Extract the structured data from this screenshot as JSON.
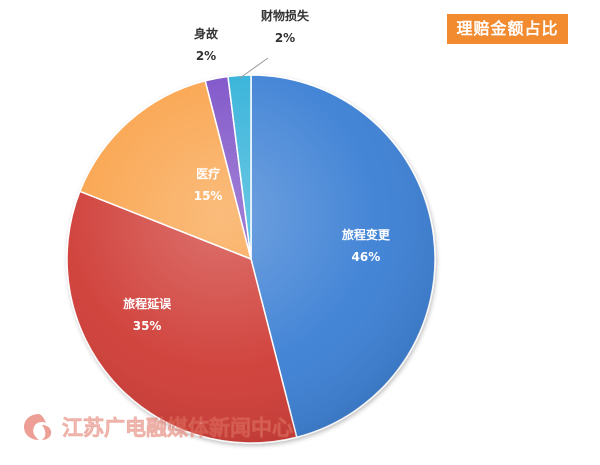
{
  "chart_data": {
    "type": "pie",
    "title": "理赔金额占比",
    "slices": [
      {
        "name": "旅程变更",
        "value": 46,
        "label": "46%",
        "color": "#3b7fd4"
      },
      {
        "name": "旅程延误",
        "value": 35,
        "label": "35%",
        "color": "#cf3a36"
      },
      {
        "name": "医疗",
        "value": 15,
        "label": "15%",
        "color": "#f9a24a"
      },
      {
        "name": "身故",
        "value": 2,
        "label": "2%",
        "color": "#7a4ec6"
      },
      {
        "name": "财物损失",
        "value": 2,
        "label": "2%",
        "color": "#2fb0d8"
      }
    ]
  },
  "watermark": {
    "text": "江苏广电融媒体新闻中心"
  }
}
